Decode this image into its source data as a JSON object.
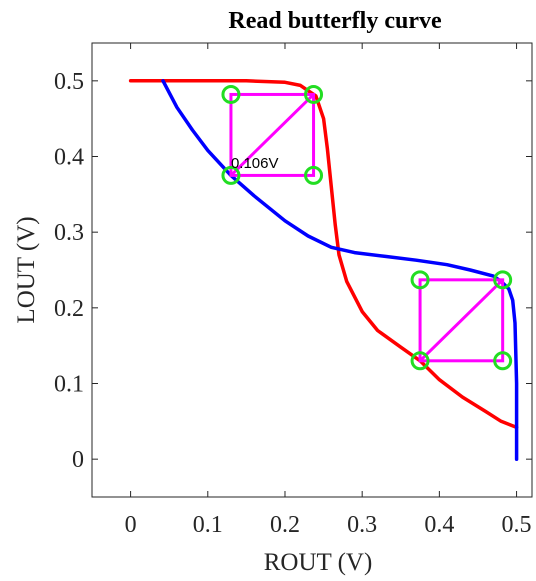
{
  "chart_data": {
    "type": "line",
    "title": "Read butterfly curve",
    "xlabel": "ROUT (V)",
    "ylabel": "LOUT (V)",
    "xlim": [
      -0.05,
      0.52
    ],
    "ylim": [
      -0.05,
      0.55
    ],
    "xticks": [
      0,
      0.1,
      0.2,
      0.3,
      0.4,
      0.5
    ],
    "yticks": [
      0,
      0.1,
      0.2,
      0.3,
      0.4,
      0.5
    ],
    "xtick_labels": [
      "0",
      "0.1",
      "0.2",
      "0.3",
      "0.4",
      "0.5"
    ],
    "ytick_labels": [
      "0",
      "0.1",
      "0.2",
      "0.3",
      "0.4",
      "0.5"
    ],
    "grid": false,
    "box": true,
    "series": [
      {
        "color": "#ff0000",
        "x": [
          0,
          0.05,
          0.1,
          0.15,
          0.2,
          0.22,
          0.24,
          0.25,
          0.255,
          0.26,
          0.265,
          0.27,
          0.28,
          0.3,
          0.32,
          0.35,
          0.375,
          0.4,
          0.43,
          0.46,
          0.48,
          0.5
        ],
        "y": [
          0.5,
          0.5,
          0.5,
          0.5,
          0.498,
          0.494,
          0.48,
          0.45,
          0.41,
          0.36,
          0.31,
          0.27,
          0.235,
          0.195,
          0.17,
          0.148,
          0.13,
          0.105,
          0.082,
          0.063,
          0.05,
          0.042
        ]
      },
      {
        "color": "#0000ff",
        "x": [
          0.042,
          0.06,
          0.08,
          0.1,
          0.13,
          0.16,
          0.2,
          0.23,
          0.26,
          0.29,
          0.33,
          0.37,
          0.41,
          0.44,
          0.47,
          0.48,
          0.49,
          0.495,
          0.498,
          0.5,
          0.5
        ],
        "y": [
          0.5,
          0.465,
          0.435,
          0.408,
          0.375,
          0.348,
          0.315,
          0.295,
          0.28,
          0.273,
          0.268,
          0.263,
          0.257,
          0.25,
          0.242,
          0.235,
          0.225,
          0.21,
          0.18,
          0.1,
          0.0
        ]
      }
    ],
    "squares": [
      {
        "color": "#ff00ff",
        "corners": [
          [
            0.13,
            0.375
          ],
          [
            0.237,
            0.482
          ]
        ],
        "diagonal": [
          [
            0.13,
            0.375
          ],
          [
            0.237,
            0.482
          ]
        ]
      },
      {
        "color": "#ff00ff",
        "corners": [
          [
            0.375,
            0.13
          ],
          [
            0.482,
            0.237
          ]
        ],
        "diagonal": [
          [
            0.375,
            0.13
          ],
          [
            0.482,
            0.237
          ]
        ]
      }
    ],
    "markers": {
      "color": "#22dd22",
      "points": [
        [
          0.13,
          0.482
        ],
        [
          0.237,
          0.482
        ],
        [
          0.13,
          0.375
        ],
        [
          0.237,
          0.375
        ],
        [
          0.375,
          0.237
        ],
        [
          0.482,
          0.237
        ],
        [
          0.375,
          0.13
        ],
        [
          0.482,
          0.13
        ]
      ]
    },
    "annotations": [
      {
        "text": "0.106V",
        "x": 0.13,
        "y": 0.385
      }
    ]
  }
}
